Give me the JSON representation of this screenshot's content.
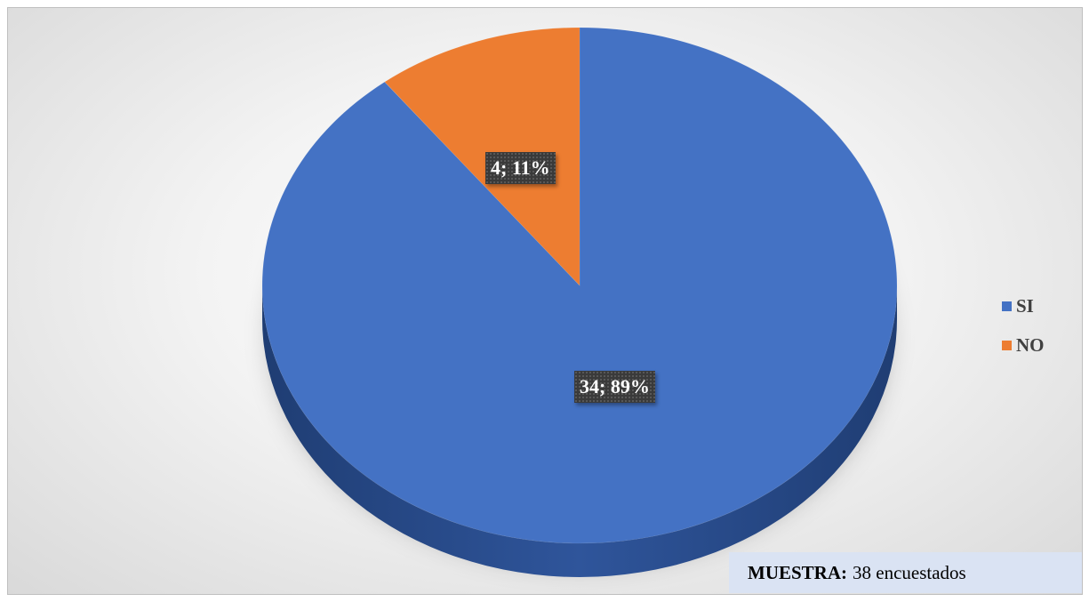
{
  "chart_data": {
    "type": "pie",
    "style": "3d",
    "categories": [
      "SI",
      "NO"
    ],
    "values": [
      34,
      4
    ],
    "percentages": [
      89,
      11
    ],
    "data_labels": [
      "34; 89%",
      "4; 11%"
    ],
    "colors": [
      "#4472c4",
      "#ed7d31"
    ],
    "legend": {
      "position": "right",
      "entries": [
        "SI",
        "NO"
      ]
    }
  },
  "note": {
    "label": "MUESTRA:",
    "value": "38 encuestados"
  }
}
